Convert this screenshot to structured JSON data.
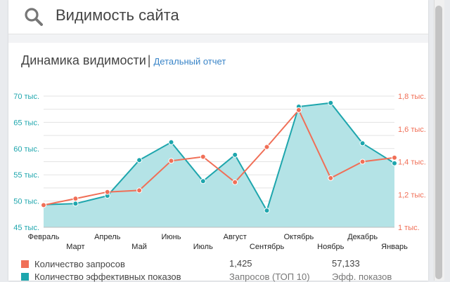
{
  "header": {
    "title": "Видимость сайта",
    "icon": "search-icon"
  },
  "section": {
    "title": "Динамика видимости",
    "separator": "|",
    "detail_link": "Детальный отчет"
  },
  "colors": {
    "teal": "#1ea6ad",
    "teal_fill": "#b4e3e6",
    "red": "#f06f57",
    "grid": "#e3e3e3"
  },
  "chart_data": {
    "type": "line",
    "categories": [
      "Февраль",
      "Март",
      "Апрель",
      "Май",
      "Июнь",
      "Июль",
      "Август",
      "Сентябрь",
      "Октябрь",
      "Ноябрь",
      "Декабрь",
      "Январь"
    ],
    "series": [
      {
        "name": "Количество эффективных показов",
        "axis": "left",
        "fill": true,
        "values": [
          49.3,
          49.5,
          51.0,
          57.8,
          61.2,
          53.8,
          58.8,
          48.2,
          68.0,
          68.7,
          61.0,
          57.2
        ]
      },
      {
        "name": "Количество запросов",
        "axis": "right",
        "fill": false,
        "values": [
          1.135,
          1.175,
          1.215,
          1.225,
          1.405,
          1.43,
          1.275,
          1.49,
          1.715,
          1.3,
          1.4,
          1.425
        ]
      }
    ],
    "y_left": {
      "min": 45,
      "max": 70,
      "ticks": [
        "45 тыс.",
        "50 тыс.",
        "55 тыс.",
        "60 тыс.",
        "65 тыс.",
        "70 тыс."
      ]
    },
    "y_right": {
      "min": 1.0,
      "max": 1.8,
      "ticks": [
        "1 тыс.",
        "1,2 тыс.",
        "1,4 тыс.",
        "1,6 тыс.",
        "1,8 тыс."
      ]
    },
    "grid": true
  },
  "legend": [
    {
      "label": "Количество запросов",
      "color": "#f06f57"
    },
    {
      "label": "Количество эффективных показов",
      "color": "#1ea6ad"
    }
  ],
  "stats": [
    {
      "value": "1,425",
      "label": "Запросов (ТОП 10)"
    },
    {
      "value": "57,133",
      "label": "Эфф. показов"
    }
  ]
}
